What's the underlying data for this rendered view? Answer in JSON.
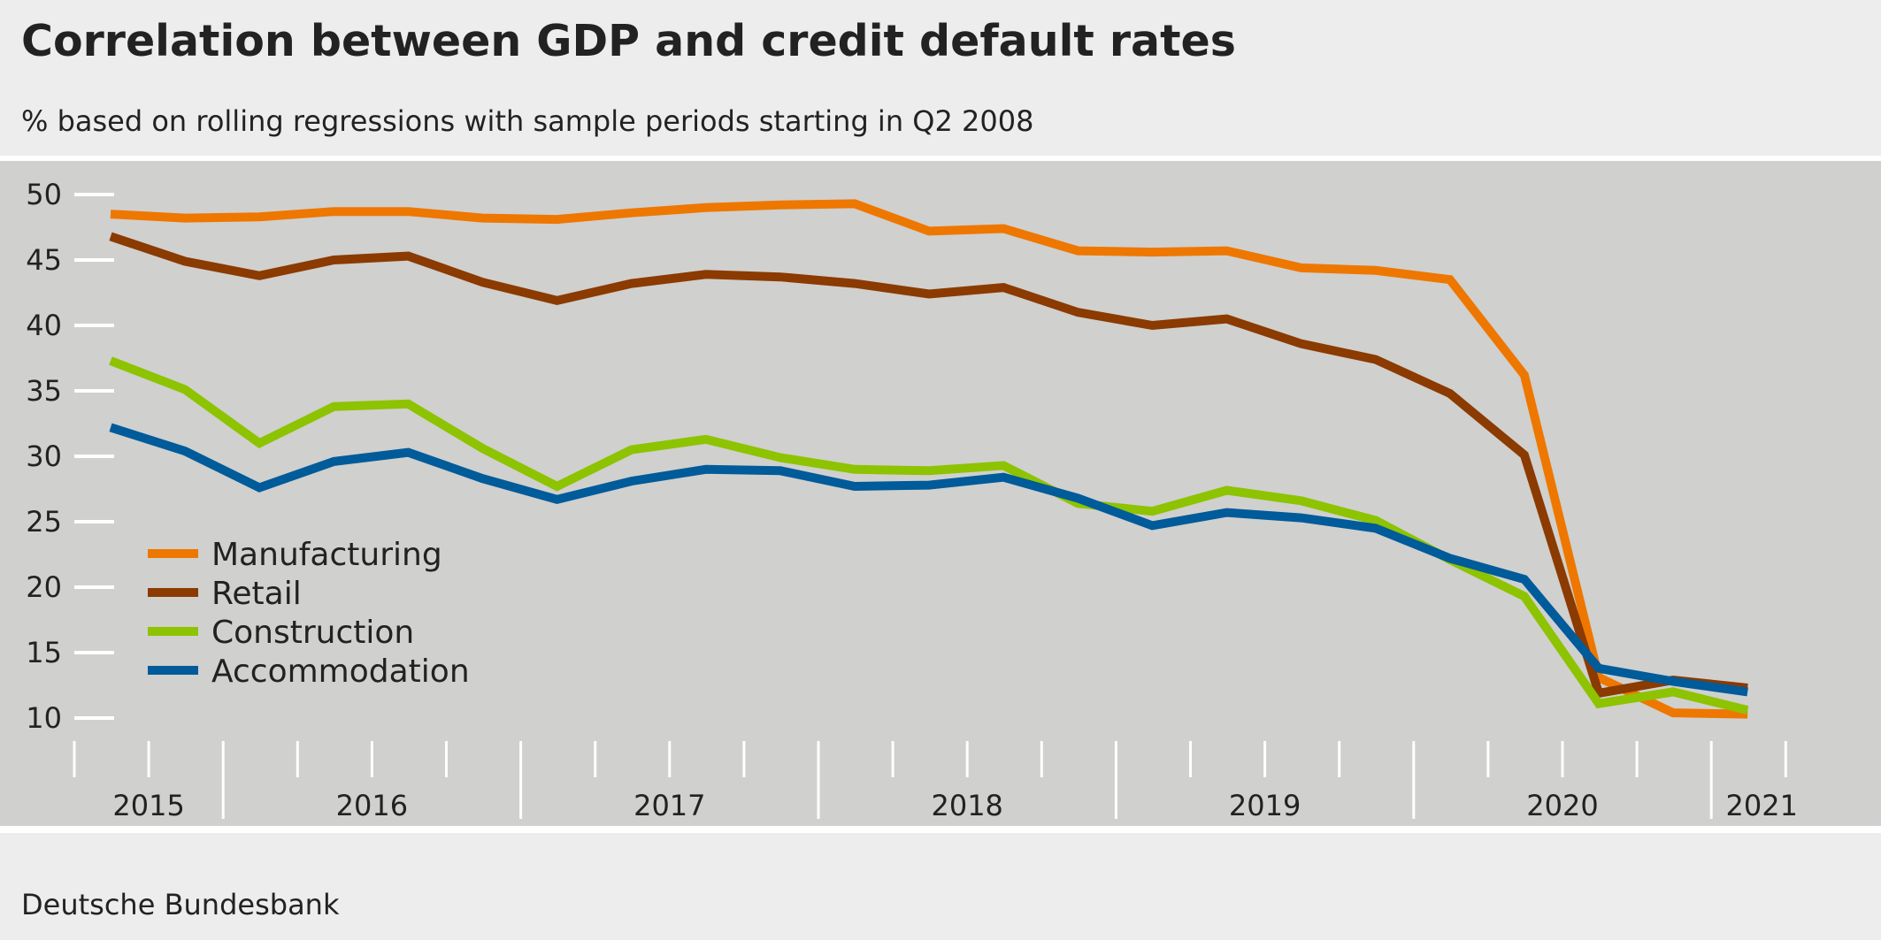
{
  "title": "Correlation between GDP and credit default rates",
  "subtitle": "% based on rolling regressions with sample periods starting in Q2 2008",
  "source": "Deutsche Bundesbank",
  "chart_data": {
    "type": "line",
    "title": "Correlation between GDP and credit default rates",
    "subtitle": "% based on rolling regressions with sample periods starting in Q2 2008",
    "xlabel": "",
    "ylabel": "",
    "x": [
      "2015 Q3",
      "2015 Q4",
      "2016 Q1",
      "2016 Q2",
      "2016 Q3",
      "2016 Q4",
      "2017 Q1",
      "2017 Q2",
      "2017 Q3",
      "2017 Q4",
      "2018 Q1",
      "2018 Q2",
      "2018 Q3",
      "2018 Q4",
      "2019 Q1",
      "2019 Q2",
      "2019 Q3",
      "2019 Q4",
      "2020 Q1",
      "2020 Q2",
      "2020 Q3",
      "2020 Q4",
      "2021 Q1"
    ],
    "x_tick_labels": [
      "2015",
      "2016",
      "2017",
      "2018",
      "2019",
      "2020",
      "2021"
    ],
    "y_ticks": [
      10,
      15,
      20,
      25,
      30,
      35,
      40,
      45,
      50
    ],
    "ylim": [
      8,
      52
    ],
    "grid": false,
    "legend_position": "bottom-left",
    "series": [
      {
        "name": "Manufacturing",
        "color": "#ee7700",
        "values": [
          48.5,
          48.2,
          48.3,
          48.7,
          48.7,
          48.2,
          48.1,
          48.6,
          49.0,
          49.2,
          49.3,
          47.2,
          47.4,
          45.7,
          45.6,
          45.7,
          44.4,
          44.2,
          43.5,
          36.2,
          13.1,
          10.4,
          10.3
        ]
      },
      {
        "name": "Retail",
        "color": "#8b3a00",
        "values": [
          46.8,
          44.9,
          43.8,
          45.0,
          45.3,
          43.3,
          41.9,
          43.2,
          43.9,
          43.7,
          43.2,
          42.4,
          42.9,
          41.0,
          40.0,
          40.5,
          38.6,
          37.4,
          34.8,
          30.1,
          11.9,
          12.9,
          12.3
        ]
      },
      {
        "name": "Construction",
        "color": "#8dc300",
        "values": [
          37.3,
          35.1,
          31.0,
          33.8,
          34.0,
          30.6,
          27.7,
          30.5,
          31.3,
          29.9,
          29.0,
          28.9,
          29.3,
          26.4,
          25.8,
          27.4,
          26.6,
          25.1,
          22.1,
          19.3,
          11.1,
          12.0,
          10.6
        ]
      },
      {
        "name": "Accommodation",
        "color": "#005b9a",
        "values": [
          32.2,
          30.4,
          27.6,
          29.6,
          30.3,
          28.3,
          26.7,
          28.1,
          29.0,
          28.9,
          27.7,
          27.8,
          28.4,
          26.8,
          24.7,
          25.7,
          25.3,
          24.5,
          22.2,
          20.6,
          13.8,
          12.8,
          12.0
        ]
      }
    ]
  }
}
